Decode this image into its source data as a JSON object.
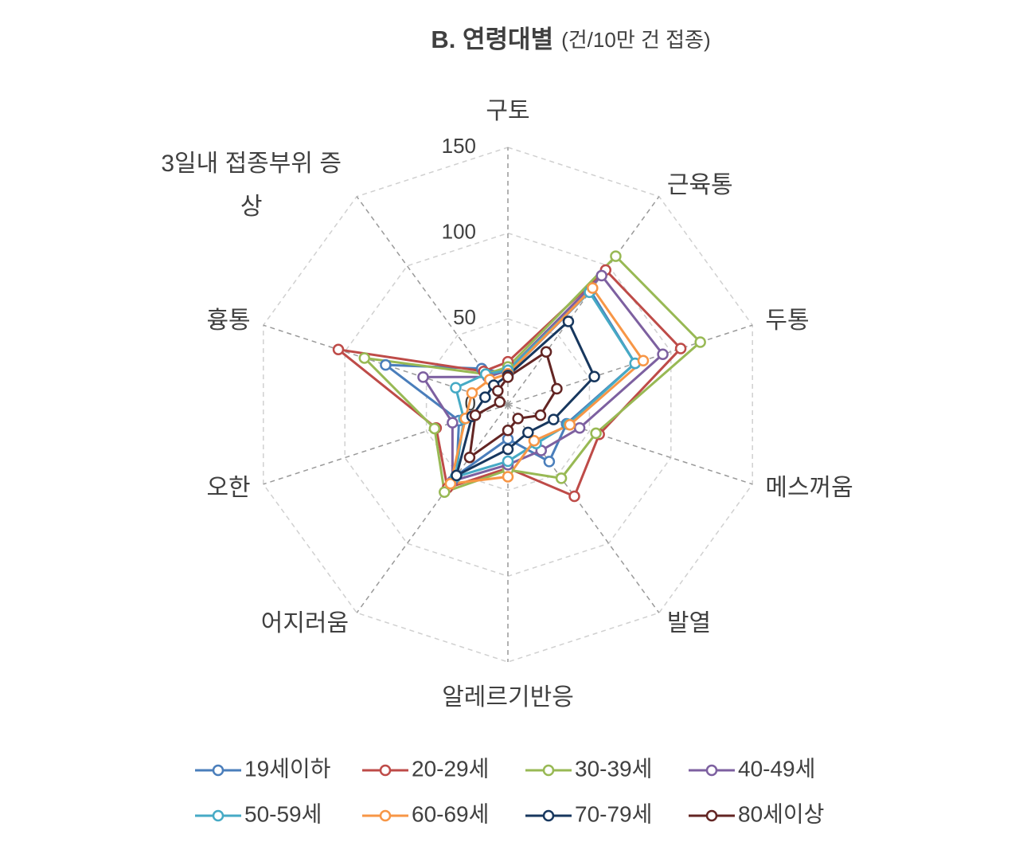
{
  "chart_data": {
    "type": "radar",
    "title": "B. 연령대별",
    "subtitle": "(건/10만 건 접종)",
    "categories": [
      "구토",
      "근육통",
      "두통",
      "메스꺼움",
      "발열",
      "알레르기반응",
      "어지러움",
      "오한",
      "흉통",
      "3일내 접종부위 증상"
    ],
    "rlim": [
      0,
      150
    ],
    "rticks": [
      0,
      50,
      100,
      150
    ],
    "grid": true,
    "series": [
      {
        "name": "19세이하",
        "color": "#4a7ebb",
        "values": [
          18,
          82,
          78,
          36,
          41,
          20,
          51,
          30,
          75,
          26
        ]
      },
      {
        "name": "20-29세",
        "color": "#be4b48",
        "values": [
          25,
          97,
          106,
          56,
          66,
          37,
          60,
          44,
          104,
          24
        ]
      },
      {
        "name": "30-39세",
        "color": "#98b954",
        "values": [
          22,
          107,
          118,
          54,
          53,
          38,
          63,
          45,
          88,
          22
        ]
      },
      {
        "name": "40-49세",
        "color": "#7d60a0",
        "values": [
          20,
          93,
          95,
          44,
          33,
          35,
          55,
          34,
          52,
          20
        ]
      },
      {
        "name": "50-59세",
        "color": "#46aac5",
        "values": [
          20,
          81,
          78,
          37,
          28,
          33,
          52,
          27,
          32,
          22
        ]
      },
      {
        "name": "60-69세",
        "color": "#f79646",
        "values": [
          18,
          84,
          83,
          38,
          26,
          42,
          57,
          26,
          22,
          18
        ]
      },
      {
        "name": "70-79세",
        "color": "#17375e",
        "values": [
          17,
          60,
          53,
          28,
          20,
          26,
          51,
          22,
          14,
          14
        ]
      },
      {
        "name": "80세이상",
        "color": "#632523",
        "values": [
          16,
          38,
          30,
          20,
          10,
          15,
          38,
          20,
          5,
          10
        ]
      }
    ]
  }
}
